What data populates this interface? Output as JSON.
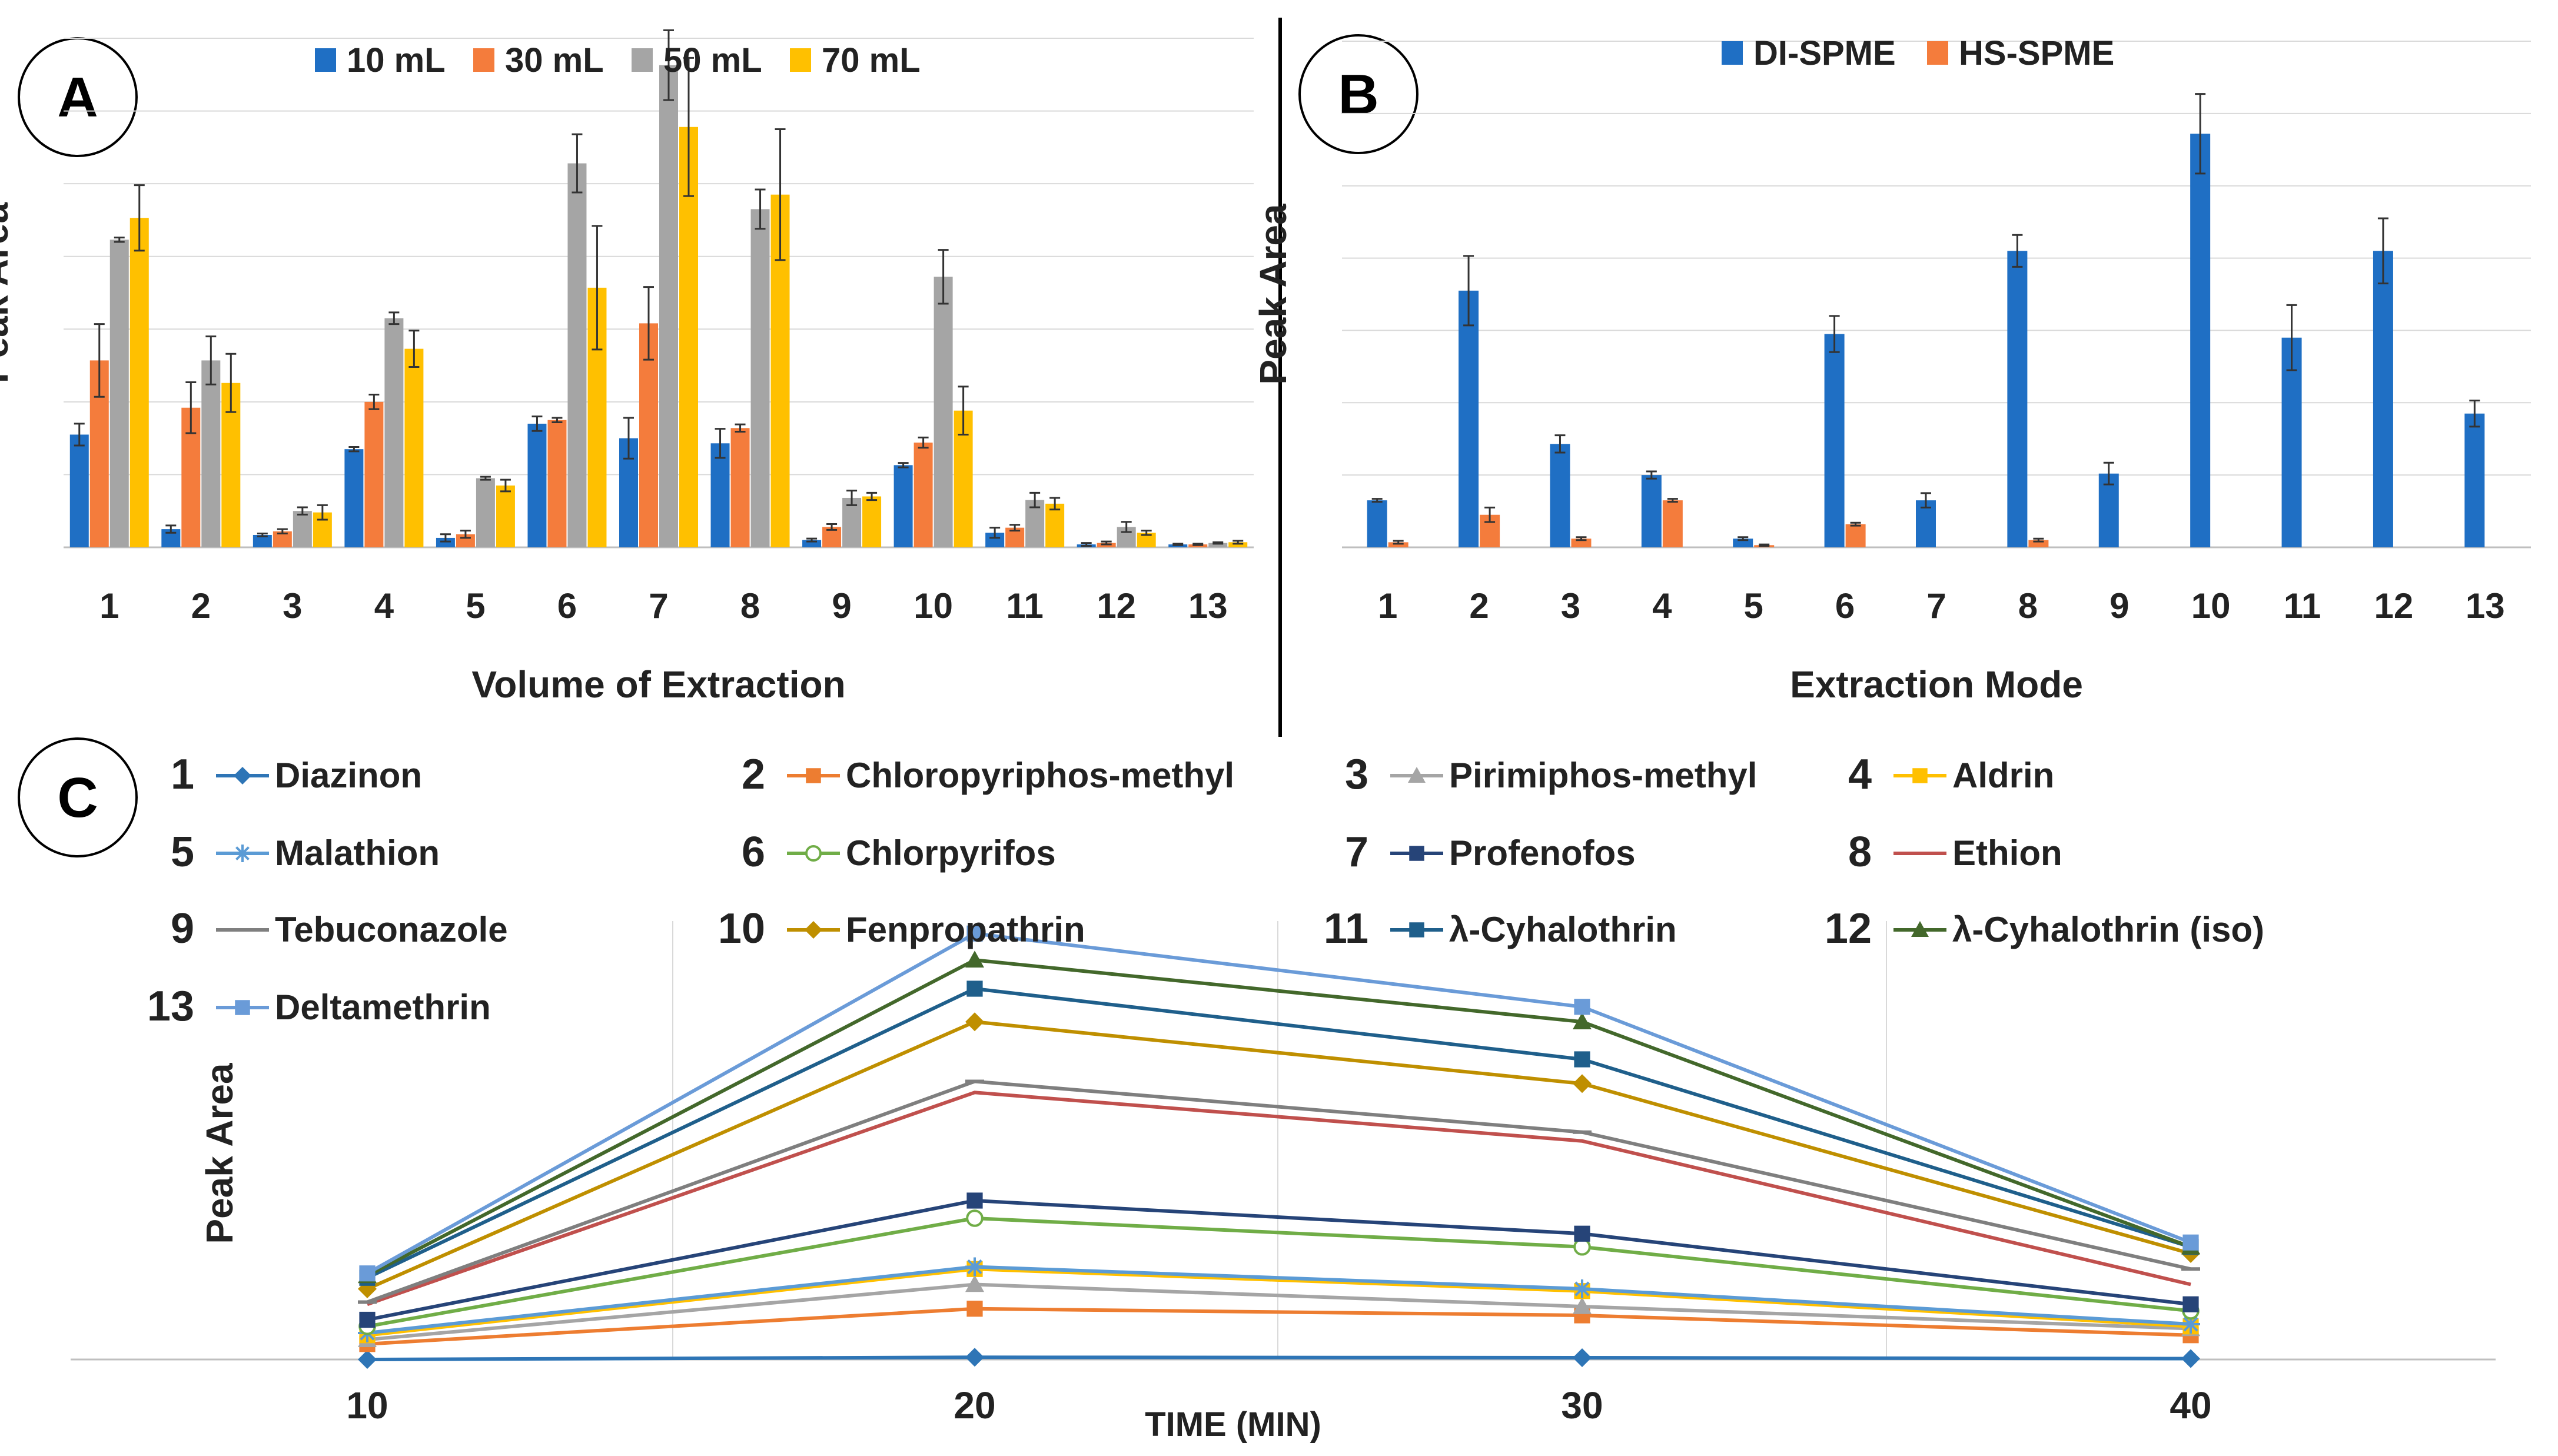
{
  "colors": {
    "grid": "#d9d9d9",
    "axis": "#bfbfbf",
    "text": "#222222",
    "divider": "#000000"
  },
  "chart_data": [
    {
      "panel": "A",
      "type": "bar",
      "title": "",
      "xlabel": "Volume of Extraction",
      "ylabel": "Peak Area",
      "ylim": [
        0,
        7
      ],
      "grid": true,
      "legend_position": "top",
      "categories": [
        "1",
        "2",
        "3",
        "4",
        "5",
        "6",
        "7",
        "8",
        "9",
        "10",
        "11",
        "12",
        "13"
      ],
      "series": [
        {
          "name": "10 mL",
          "color": "#1f6fc4",
          "values": [
            1.55,
            0.25,
            0.17,
            1.35,
            0.13,
            1.7,
            1.5,
            1.43,
            0.1,
            1.13,
            0.2,
            0.04,
            0.04
          ],
          "errors": [
            0.15,
            0.05,
            0.02,
            0.03,
            0.05,
            0.1,
            0.28,
            0.2,
            0.02,
            0.03,
            0.07,
            0.02,
            0.01
          ]
        },
        {
          "name": "30 mL",
          "color": "#f47c3c",
          "values": [
            2.57,
            1.92,
            0.22,
            2.0,
            0.18,
            1.75,
            3.08,
            1.64,
            0.28,
            1.44,
            0.27,
            0.06,
            0.04
          ],
          "errors": [
            0.5,
            0.35,
            0.03,
            0.1,
            0.05,
            0.03,
            0.5,
            0.05,
            0.04,
            0.07,
            0.04,
            0.02,
            0.01
          ]
        },
        {
          "name": "50 mL",
          "color": "#a5a5a5",
          "values": [
            4.23,
            2.57,
            0.5,
            3.15,
            0.95,
            5.28,
            6.63,
            4.65,
            0.68,
            3.72,
            0.65,
            0.28,
            0.06
          ],
          "errors": [
            0.03,
            0.33,
            0.05,
            0.08,
            0.02,
            0.4,
            0.48,
            0.27,
            0.1,
            0.37,
            0.1,
            0.07,
            0.01
          ]
        },
        {
          "name": "70 mL",
          "color": "#ffc000",
          "values": [
            4.53,
            2.26,
            0.48,
            2.73,
            0.85,
            3.57,
            5.78,
            4.85,
            0.7,
            1.88,
            0.6,
            0.2,
            0.07
          ],
          "errors": [
            0.45,
            0.4,
            0.1,
            0.25,
            0.08,
            0.85,
            0.95,
            0.9,
            0.05,
            0.33,
            0.08,
            0.03,
            0.02
          ]
        }
      ]
    },
    {
      "panel": "B",
      "type": "bar",
      "title": "",
      "xlabel": "Extraction Mode",
      "ylabel": "Peak Area",
      "ylim": [
        0,
        7
      ],
      "grid": true,
      "legend_position": "top",
      "categories": [
        "1",
        "2",
        "3",
        "4",
        "5",
        "6",
        "7",
        "8",
        "9",
        "10",
        "11",
        "12",
        "13"
      ],
      "series": [
        {
          "name": "DI-SPME",
          "color": "#1f6fc4",
          "values": [
            0.65,
            3.55,
            1.43,
            1.0,
            0.12,
            2.95,
            0.65,
            4.1,
            1.02,
            5.72,
            2.9,
            4.1,
            1.85
          ],
          "errors": [
            0.02,
            0.48,
            0.12,
            0.05,
            0.02,
            0.25,
            0.1,
            0.22,
            0.15,
            0.55,
            0.45,
            0.45,
            0.18
          ]
        },
        {
          "name": "HS-SPME",
          "color": "#f47c3c",
          "values": [
            0.07,
            0.45,
            0.12,
            0.65,
            0.03,
            0.32,
            0.0,
            0.1,
            0.0,
            0.0,
            0.0,
            0.0,
            0.0
          ],
          "errors": [
            0.02,
            0.1,
            0.02,
            0.02,
            0.01,
            0.02,
            0.0,
            0.02,
            0.0,
            0.0,
            0.0,
            0.0,
            0.0
          ]
        }
      ]
    },
    {
      "panel": "C",
      "type": "line",
      "title": "",
      "xlabel": "TIME (MIN)",
      "ylabel": "Peak Area",
      "x": [
        10,
        20,
        30,
        40
      ],
      "ylim": [
        0,
        10
      ],
      "grid": true,
      "legend_position": "top",
      "series": [
        {
          "id": "1",
          "name": "Diazinon",
          "color": "#2e75b6",
          "marker": "diamond",
          "values": [
            0.0,
            0.05,
            0.04,
            0.02
          ]
        },
        {
          "id": "2",
          "name": "Chloropyriphos-methyl",
          "color": "#ed7d31",
          "marker": "square",
          "values": [
            0.35,
            1.15,
            1.0,
            0.55
          ]
        },
        {
          "id": "3",
          "name": "Pirimiphos-methyl",
          "color": "#a5a5a5",
          "marker": "triangle",
          "values": [
            0.45,
            1.7,
            1.2,
            0.7
          ]
        },
        {
          "id": "4",
          "name": "Aldrin",
          "color": "#ffc000",
          "marker": "square",
          "values": [
            0.55,
            2.05,
            1.55,
            0.75
          ]
        },
        {
          "id": "5",
          "name": "Malathion",
          "color": "#5b9bd5",
          "marker": "star",
          "values": [
            0.6,
            2.1,
            1.6,
            0.8
          ]
        },
        {
          "id": "6",
          "name": "Chlorpyrifos",
          "color": "#70ad47",
          "marker": "circle",
          "values": [
            0.75,
            3.2,
            2.55,
            1.1
          ]
        },
        {
          "id": "7",
          "name": "Profenofos",
          "color": "#264478",
          "marker": "square",
          "values": [
            0.9,
            3.6,
            2.85,
            1.25
          ]
        },
        {
          "id": "8",
          "name": "Ethion",
          "color": "#c0504d",
          "marker": "none",
          "values": [
            1.25,
            6.05,
            4.95,
            1.7
          ]
        },
        {
          "id": "9",
          "name": "Tebuconazole",
          "color": "#7f7f7f",
          "marker": "dash",
          "values": [
            1.3,
            6.3,
            5.15,
            2.05
          ]
        },
        {
          "id": "10",
          "name": "Fenpropathrin",
          "color": "#bf8f00",
          "marker": "diamond",
          "values": [
            1.6,
            7.65,
            6.25,
            2.4
          ]
        },
        {
          "id": "11",
          "name": "λ-Cyhalothrin",
          "color": "#1f5f8b",
          "marker": "square",
          "values": [
            1.85,
            8.4,
            6.8,
            2.55
          ]
        },
        {
          "id": "12",
          "name": "λ-Cyhalothrin  (iso)",
          "color": "#43682b",
          "marker": "triangle",
          "values": [
            1.9,
            9.05,
            7.65,
            2.55
          ]
        },
        {
          "id": "13",
          "name": "Deltamethrin",
          "color": "#6a9bd8",
          "marker": "square",
          "values": [
            1.95,
            9.65,
            7.99,
            2.65
          ]
        }
      ]
    }
  ],
  "panel_labels": {
    "a": "A",
    "b": "B",
    "c": "C"
  }
}
